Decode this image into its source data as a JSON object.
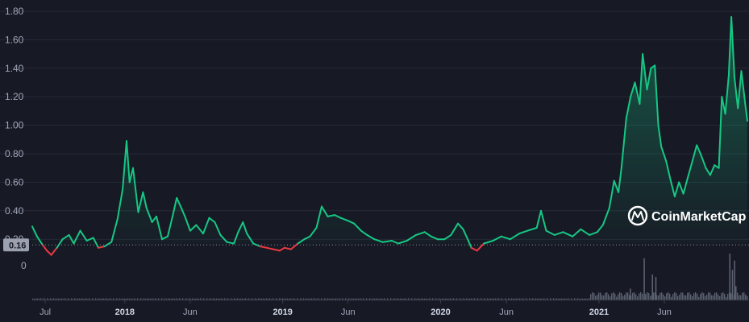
{
  "chart_data": {
    "type": "area",
    "watermark": "CoinMarketCap",
    "colors": {
      "up": "#16c784",
      "down": "#ea3943",
      "volume": "#5c6170",
      "grid": "#262a38"
    },
    "y_ticks": [
      "1.80",
      "1.60",
      "1.40",
      "1.20",
      "1.00",
      "0.80",
      "0.60",
      "0.40",
      "0.20"
    ],
    "ylim": [
      0.1,
      1.8
    ],
    "baseline_value": 0.16,
    "baseline_label": "0.16",
    "volume_axis_label": "0",
    "x_ticks": [
      {
        "label": "Jul",
        "date": "2017-07-01",
        "year": false
      },
      {
        "label": "2018",
        "date": "2018-01-01",
        "year": true
      },
      {
        "label": "Jun",
        "date": "2018-06-01",
        "year": false
      },
      {
        "label": "2019",
        "date": "2019-01-01",
        "year": true
      },
      {
        "label": "Jun",
        "date": "2019-06-01",
        "year": false
      },
      {
        "label": "2020",
        "date": "2020-01-01",
        "year": true
      },
      {
        "label": "Jun",
        "date": "2020-06-01",
        "year": false
      },
      {
        "label": "2021",
        "date": "2021-01-01",
        "year": true
      },
      {
        "label": "Jun",
        "date": "2021-06-01",
        "year": false
      }
    ],
    "series": [
      {
        "values": [
          [
            "2017-06-01",
            0.29
          ],
          [
            "2017-06-12",
            0.22
          ],
          [
            "2017-06-25",
            0.16
          ],
          [
            "2017-07-05",
            0.12
          ],
          [
            "2017-07-15",
            0.09
          ],
          [
            "2017-07-28",
            0.14
          ],
          [
            "2017-08-10",
            0.2
          ],
          [
            "2017-08-25",
            0.23
          ],
          [
            "2017-09-05",
            0.17
          ],
          [
            "2017-09-20",
            0.26
          ],
          [
            "2017-10-05",
            0.19
          ],
          [
            "2017-10-20",
            0.21
          ],
          [
            "2017-11-01",
            0.14
          ],
          [
            "2017-11-15",
            0.15
          ],
          [
            "2017-12-01",
            0.18
          ],
          [
            "2017-12-15",
            0.34
          ],
          [
            "2017-12-27",
            0.55
          ],
          [
            "2018-01-05",
            0.89
          ],
          [
            "2018-01-12",
            0.6
          ],
          [
            "2018-01-20",
            0.7
          ],
          [
            "2018-02-01",
            0.39
          ],
          [
            "2018-02-12",
            0.53
          ],
          [
            "2018-02-20",
            0.42
          ],
          [
            "2018-03-05",
            0.32
          ],
          [
            "2018-03-15",
            0.36
          ],
          [
            "2018-03-28",
            0.2
          ],
          [
            "2018-04-10",
            0.22
          ],
          [
            "2018-04-22",
            0.37
          ],
          [
            "2018-05-01",
            0.49
          ],
          [
            "2018-05-10",
            0.43
          ],
          [
            "2018-05-20",
            0.36
          ],
          [
            "2018-06-01",
            0.26
          ],
          [
            "2018-06-15",
            0.3
          ],
          [
            "2018-07-01",
            0.24
          ],
          [
            "2018-07-15",
            0.35
          ],
          [
            "2018-07-28",
            0.32
          ],
          [
            "2018-08-10",
            0.23
          ],
          [
            "2018-08-25",
            0.18
          ],
          [
            "2018-09-10",
            0.17
          ],
          [
            "2018-09-20",
            0.25
          ],
          [
            "2018-10-01",
            0.32
          ],
          [
            "2018-10-10",
            0.24
          ],
          [
            "2018-10-25",
            0.17
          ],
          [
            "2018-11-10",
            0.15
          ],
          [
            "2018-11-25",
            0.14
          ],
          [
            "2018-12-10",
            0.13
          ],
          [
            "2018-12-25",
            0.12
          ],
          [
            "2019-01-05",
            0.14
          ],
          [
            "2019-01-20",
            0.13
          ],
          [
            "2019-02-05",
            0.17
          ],
          [
            "2019-02-20",
            0.2
          ],
          [
            "2019-03-05",
            0.22
          ],
          [
            "2019-03-20",
            0.28
          ],
          [
            "2019-04-01",
            0.43
          ],
          [
            "2019-04-15",
            0.36
          ],
          [
            "2019-05-01",
            0.37
          ],
          [
            "2019-05-15",
            0.35
          ],
          [
            "2019-06-01",
            0.33
          ],
          [
            "2019-06-15",
            0.31
          ],
          [
            "2019-07-01",
            0.26
          ],
          [
            "2019-07-15",
            0.23
          ],
          [
            "2019-08-01",
            0.2
          ],
          [
            "2019-08-20",
            0.18
          ],
          [
            "2019-09-10",
            0.19
          ],
          [
            "2019-09-25",
            0.17
          ],
          [
            "2019-10-15",
            0.19
          ],
          [
            "2019-11-05",
            0.23
          ],
          [
            "2019-11-25",
            0.25
          ],
          [
            "2019-12-10",
            0.22
          ],
          [
            "2019-12-25",
            0.2
          ],
          [
            "2020-01-10",
            0.2
          ],
          [
            "2020-01-25",
            0.23
          ],
          [
            "2020-02-10",
            0.31
          ],
          [
            "2020-02-22",
            0.27
          ],
          [
            "2020-03-05",
            0.19
          ],
          [
            "2020-03-12",
            0.14
          ],
          [
            "2020-03-25",
            0.12
          ],
          [
            "2020-04-10",
            0.17
          ],
          [
            "2020-05-01",
            0.19
          ],
          [
            "2020-05-20",
            0.22
          ],
          [
            "2020-06-10",
            0.2
          ],
          [
            "2020-07-01",
            0.24
          ],
          [
            "2020-07-20",
            0.26
          ],
          [
            "2020-08-10",
            0.28
          ],
          [
            "2020-08-20",
            0.4
          ],
          [
            "2020-09-01",
            0.26
          ],
          [
            "2020-09-20",
            0.23
          ],
          [
            "2020-10-10",
            0.25
          ],
          [
            "2020-11-01",
            0.22
          ],
          [
            "2020-11-20",
            0.27
          ],
          [
            "2020-12-10",
            0.23
          ],
          [
            "2020-12-28",
            0.25
          ],
          [
            "2021-01-10",
            0.3
          ],
          [
            "2021-01-25",
            0.42
          ],
          [
            "2021-02-05",
            0.61
          ],
          [
            "2021-02-15",
            0.53
          ],
          [
            "2021-02-22",
            0.7
          ],
          [
            "2021-03-05",
            1.05
          ],
          [
            "2021-03-15",
            1.2
          ],
          [
            "2021-03-25",
            1.3
          ],
          [
            "2021-04-05",
            1.15
          ],
          [
            "2021-04-12",
            1.5
          ],
          [
            "2021-04-22",
            1.25
          ],
          [
            "2021-05-01",
            1.4
          ],
          [
            "2021-05-10",
            1.42
          ],
          [
            "2021-05-18",
            1.0
          ],
          [
            "2021-05-25",
            0.85
          ],
          [
            "2021-06-05",
            0.75
          ],
          [
            "2021-06-15",
            0.62
          ],
          [
            "2021-06-25",
            0.5
          ],
          [
            "2021-07-05",
            0.6
          ],
          [
            "2021-07-15",
            0.52
          ],
          [
            "2021-07-25",
            0.63
          ],
          [
            "2021-08-05",
            0.75
          ],
          [
            "2021-08-15",
            0.86
          ],
          [
            "2021-08-25",
            0.79
          ],
          [
            "2021-09-05",
            0.7
          ],
          [
            "2021-09-15",
            0.65
          ],
          [
            "2021-09-25",
            0.72
          ],
          [
            "2021-10-05",
            0.7
          ],
          [
            "2021-10-12",
            1.2
          ],
          [
            "2021-10-20",
            1.08
          ],
          [
            "2021-10-28",
            1.35
          ],
          [
            "2021-11-03",
            1.76
          ],
          [
            "2021-11-10",
            1.34
          ],
          [
            "2021-11-18",
            1.12
          ],
          [
            "2021-11-26",
            1.38
          ],
          [
            "2021-12-05",
            1.15
          ],
          [
            "2021-12-10",
            1.03
          ]
        ]
      }
    ],
    "volume": [
      [
        "2021-03-13",
        0.25
      ],
      [
        "2021-04-14",
        0.9
      ],
      [
        "2021-05-03",
        0.55
      ],
      [
        "2021-05-11",
        0.5
      ],
      [
        "2021-10-29",
        1.0
      ],
      [
        "2021-11-04",
        0.65
      ],
      [
        "2021-11-09",
        0.85
      ],
      [
        "2021-11-12",
        0.3
      ]
    ]
  }
}
